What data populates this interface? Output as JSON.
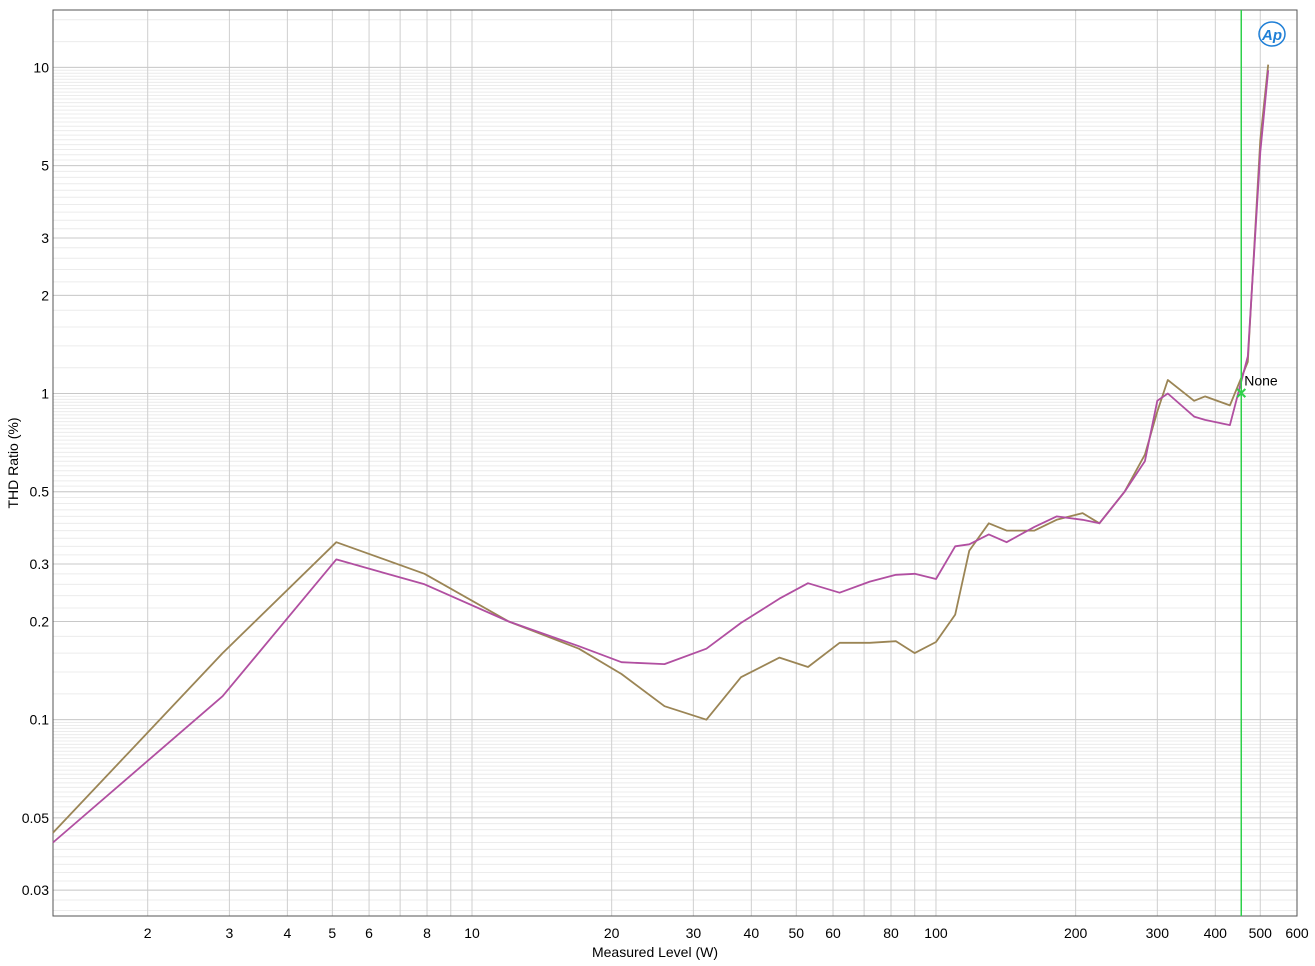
{
  "chart_data": {
    "type": "line",
    "title": "",
    "xlabel": "Measured Level (W)",
    "ylabel": "THD Ratio (%)",
    "x_scale": "log",
    "y_scale": "log",
    "xlim": [
      1.25,
      600
    ],
    "ylim": [
      0.025,
      15
    ],
    "grid": true,
    "x_tick_labels": [
      "2",
      "3",
      "4",
      "5",
      "6",
      "8",
      "10",
      "20",
      "30",
      "40",
      "50",
      "60",
      "80",
      "100",
      "200",
      "300",
      "400",
      "500",
      "600"
    ],
    "y_tick_labels": [
      "10",
      "5",
      "3",
      "2",
      "1",
      "0.5",
      "0.3",
      "0.2",
      "0.1",
      "0.05",
      "0.03"
    ],
    "series": [
      {
        "color": "#9b8555",
        "x": [
          1.25,
          2.9,
          5.1,
          7.9,
          12,
          17,
          21,
          26,
          32,
          38,
          46,
          53,
          62,
          72,
          82,
          90,
          100,
          110,
          118,
          130,
          142,
          163,
          182,
          207,
          225,
          255,
          282,
          300,
          316,
          360,
          380,
          430,
          470,
          500,
          520
        ],
        "y": [
          0.045,
          0.16,
          0.35,
          0.28,
          0.2,
          0.165,
          0.138,
          0.11,
          0.1,
          0.135,
          0.155,
          0.145,
          0.172,
          0.172,
          0.174,
          0.16,
          0.173,
          0.21,
          0.33,
          0.4,
          0.38,
          0.38,
          0.41,
          0.43,
          0.4,
          0.5,
          0.65,
          0.88,
          1.1,
          0.95,
          0.98,
          0.92,
          1.25,
          6.0,
          10.2
        ]
      },
      {
        "color": "#b14fa1",
        "x": [
          1.25,
          2.9,
          5.1,
          7.9,
          12,
          17,
          21,
          26,
          32,
          38,
          46,
          53,
          62,
          72,
          82,
          90,
          100,
          110,
          118,
          130,
          142,
          163,
          182,
          207,
          225,
          255,
          282,
          300,
          316,
          360,
          380,
          430,
          470,
          500,
          520
        ],
        "y": [
          0.042,
          0.118,
          0.31,
          0.26,
          0.2,
          0.168,
          0.15,
          0.148,
          0.165,
          0.198,
          0.235,
          0.262,
          0.245,
          0.265,
          0.278,
          0.28,
          0.27,
          0.34,
          0.345,
          0.37,
          0.35,
          0.39,
          0.42,
          0.41,
          0.4,
          0.5,
          0.62,
          0.95,
          1.0,
          0.85,
          0.83,
          0.8,
          1.3,
          5.5,
          9.8
        ]
      }
    ],
    "cursor": {
      "x": 455,
      "y": 1.0,
      "label": "None",
      "color": "#2ed14a"
    }
  },
  "logo": {
    "text": "AP",
    "color": "#1f7fd6"
  }
}
